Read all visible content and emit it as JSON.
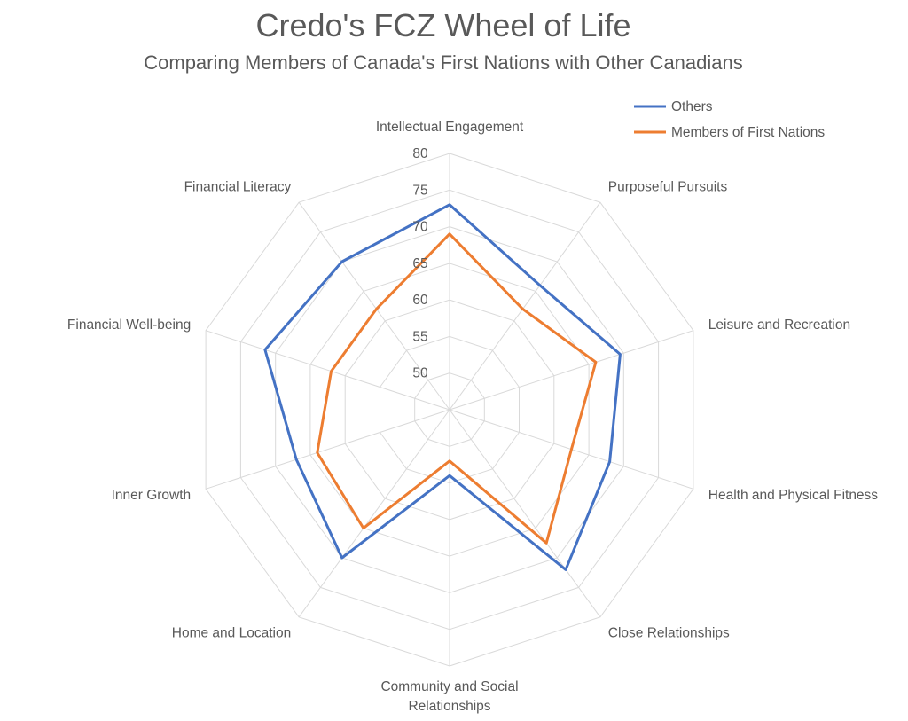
{
  "chart_data": {
    "type": "radar",
    "title": "Credo's FCZ Wheel of Life",
    "subtitle": "Comparing Members of Canada's First Nations with Other Canadians",
    "categories": [
      "Intellectual Engagement",
      "Purposeful Pursuits",
      "Leisure and Recreation",
      "Health and Physical Fitness",
      "Close Relationships",
      "Community and Social Relationships",
      "Home and Location",
      "Inner Growth",
      "Financial Well-being",
      "Financial Literacy"
    ],
    "r_ticks": [
      50,
      55,
      60,
      65,
      70,
      75,
      80
    ],
    "rlim": [
      45,
      80
    ],
    "grid": true,
    "legend_position": "top-right",
    "series": [
      {
        "name": "Others",
        "color": "#4472C4",
        "values": [
          73,
          66,
          69.5,
          68,
          72,
          54,
          70,
          67,
          71.5,
          70
        ]
      },
      {
        "name": "Members of First Nations",
        "color": "#ED7D31",
        "values": [
          69,
          62,
          66,
          62.5,
          67.5,
          52,
          65,
          64,
          62,
          62
        ]
      }
    ]
  }
}
